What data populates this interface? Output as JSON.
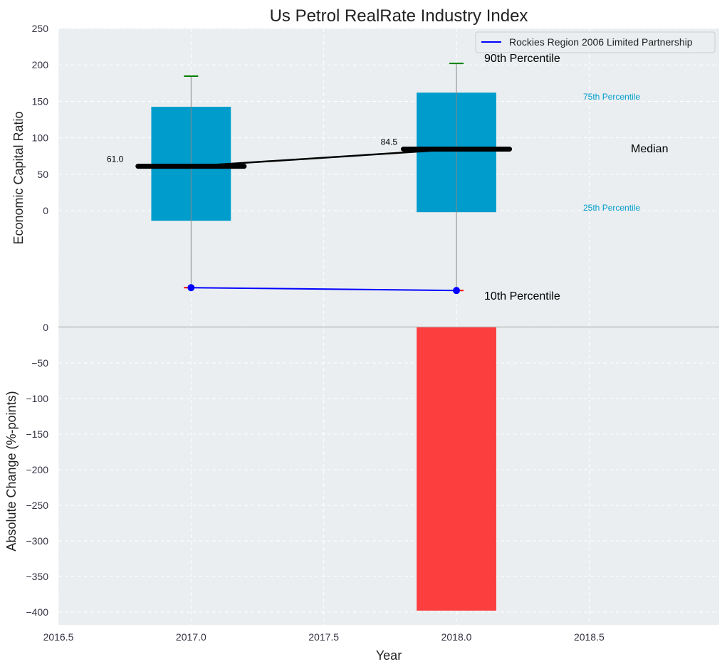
{
  "chart_data": [
    {
      "type": "box-percentile",
      "title": "Us Petrol RealRate Industry Index",
      "ylabel": "Economic Capital Ratio",
      "ylim": [
        -159,
        250
      ],
      "yticks": [
        0,
        50,
        100,
        150,
        200,
        250
      ],
      "x": [
        2017.0,
        2018.0
      ],
      "p10": [
        -105.5,
        -109.4
      ],
      "p25": [
        -13.7,
        -2
      ],
      "median": [
        61.0,
        84.5
      ],
      "p75": [
        142.6,
        162
      ],
      "p90": [
        184.6,
        202
      ],
      "median_labels": [
        "61.0",
        "84.5"
      ],
      "series": [
        {
          "name": "Rockies Region 2006 Limited Partnership",
          "values": [
            -105.5,
            -109.4
          ],
          "color": "#0000ff"
        }
      ],
      "annotations": {
        "p90": "90th Percentile",
        "p75": "75th Percentile",
        "median": "Median",
        "p25": "25th Percentile",
        "p10": "10th Percentile"
      },
      "legend": "top-right",
      "grid": true,
      "box_color": "#009ccc"
    },
    {
      "type": "bar",
      "xlabel": "Year",
      "ylabel": "Absolute Change (%-points)",
      "ylim": [
        -418,
        0
      ],
      "yticks": [
        0,
        -50,
        -100,
        -150,
        -200,
        -250,
        -300,
        -350,
        -400
      ],
      "ytick_labels": [
        "0",
        "−50",
        "−100",
        "−150",
        "−200",
        "−250",
        "−300",
        "−350",
        "−400"
      ],
      "x": [
        2018.0
      ],
      "values": [
        -398
      ],
      "color": "#ff2a2a",
      "xlim": [
        2016.5,
        2018.99
      ],
      "xticks": [
        2016.5,
        2017.0,
        2017.5,
        2018.0,
        2018.5
      ],
      "xtick_labels": [
        "2016.5",
        "2017.0",
        "2017.5",
        "2018.0",
        "2018.5"
      ]
    }
  ]
}
